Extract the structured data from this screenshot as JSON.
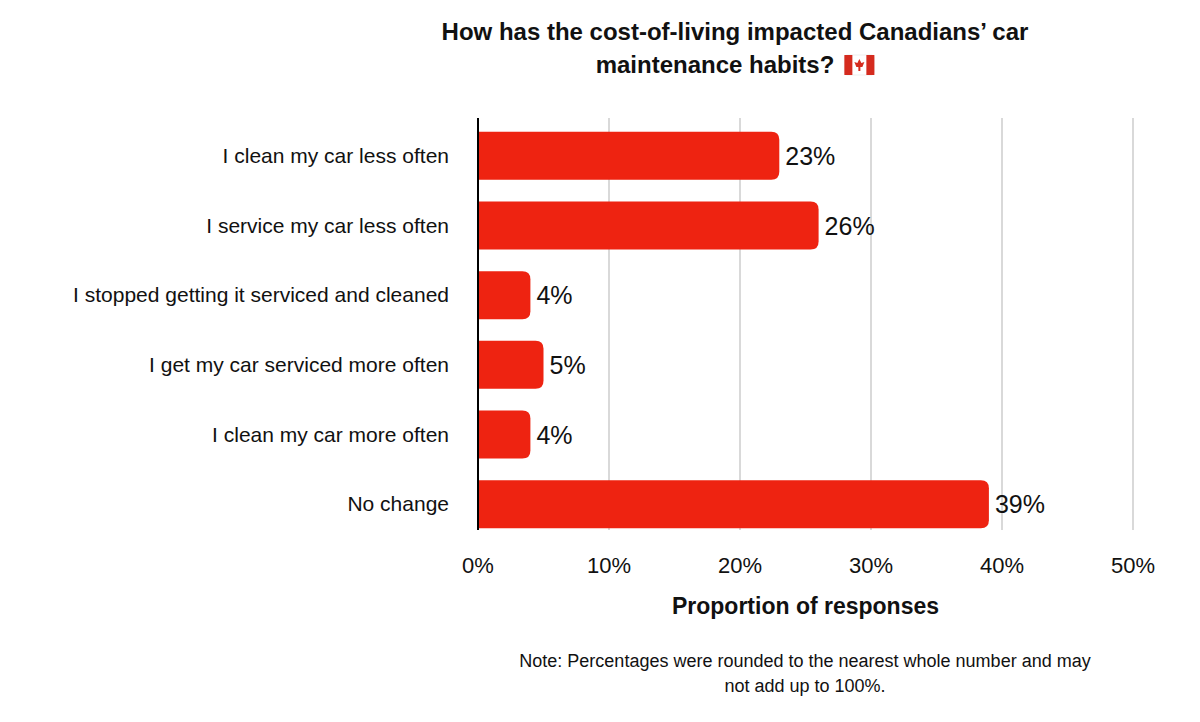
{
  "chart_data": {
    "type": "bar",
    "orientation": "horizontal",
    "title": "How has the cost-of-living impacted Canadians’ car maintenance habits?",
    "xlabel": "Proportion of responses",
    "note": "Note: Percentages were rounded to the nearest whole number and may not add up to 100%.",
    "categories": [
      "I clean my car less often",
      "I service my car less often",
      "I stopped getting it serviced and cleaned",
      "I get my car serviced more often",
      "I clean my car more often",
      "No change"
    ],
    "values": [
      23,
      26,
      4,
      5,
      4,
      39
    ],
    "value_labels": [
      "23%",
      "26%",
      "4%",
      "5%",
      "4%",
      "39%"
    ],
    "color": "#ee2311",
    "xlim": [
      0,
      50
    ],
    "xticks": [
      {
        "value": 0,
        "label": "0%"
      },
      {
        "value": 10,
        "label": "10%"
      },
      {
        "value": 20,
        "label": "20%"
      },
      {
        "value": 30,
        "label": "30%"
      },
      {
        "value": 40,
        "label": "40%"
      },
      {
        "value": 50,
        "label": "50%"
      }
    ],
    "grid": true,
    "data_labels": true
  }
}
